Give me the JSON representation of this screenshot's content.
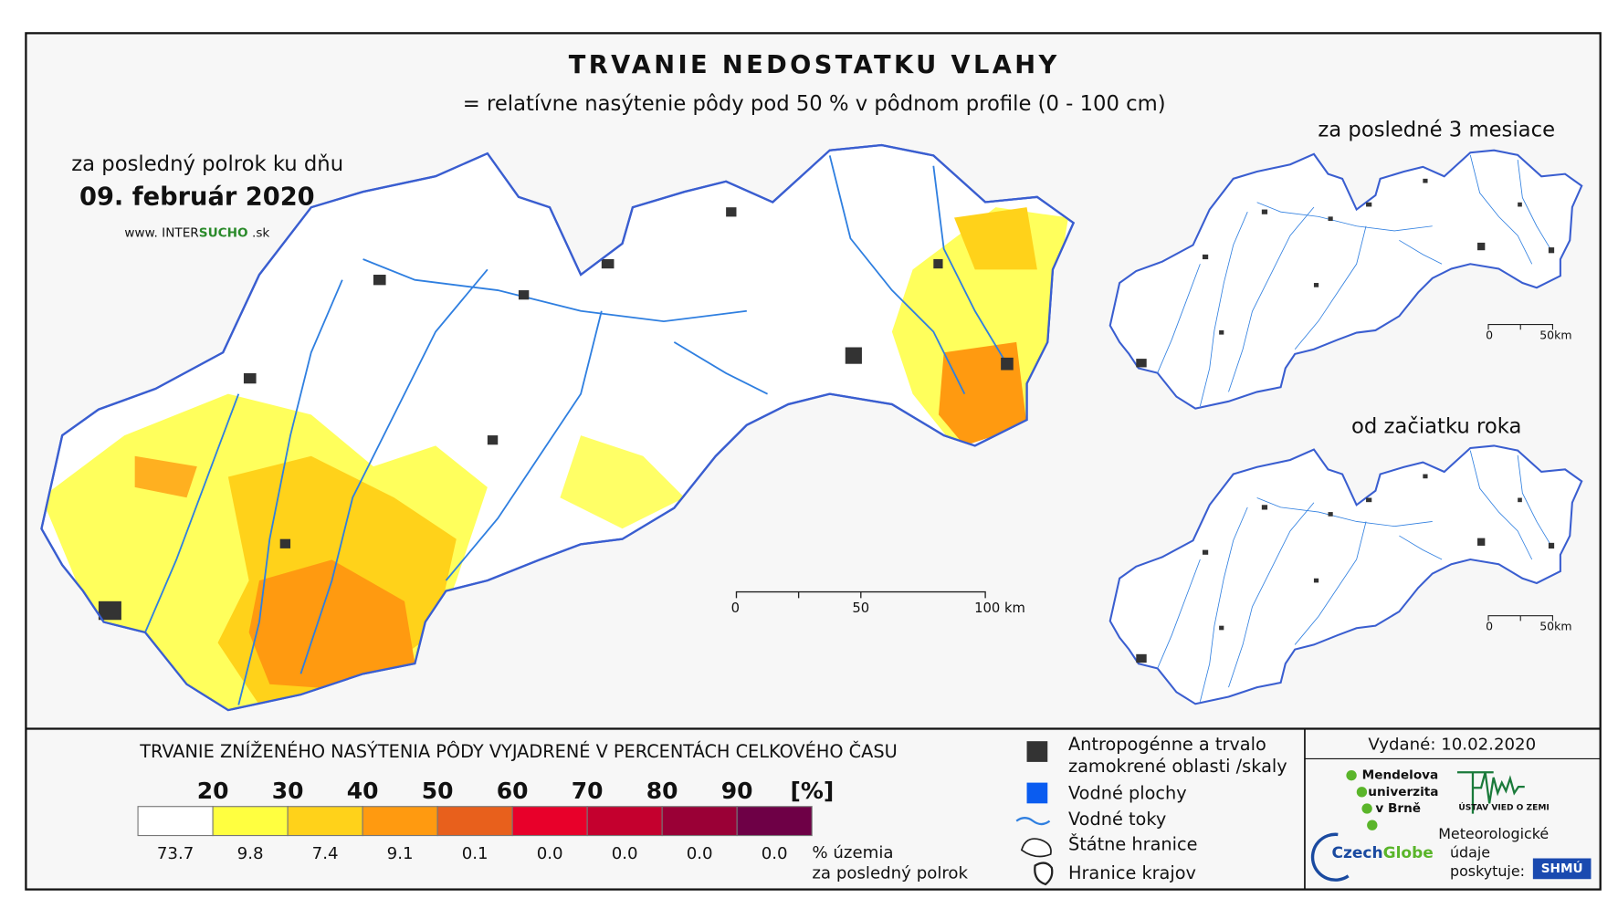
{
  "header": {
    "title": "TRVANIE NEDOSTATKU VLAHY",
    "subtitle": "= relatívne nasýtenie pôdy pod 50 % v pôdnom profile (0 - 100 cm)"
  },
  "main_map": {
    "caption": "za posledný polrok ku dňu",
    "date": "09. február 2020",
    "website": {
      "prefix": "www. INTER",
      "highlight": "SUCHO",
      "suffix": " .sk"
    },
    "scale": {
      "ticks": [
        "0",
        "50",
        "100 km"
      ]
    }
  },
  "inset_maps": [
    {
      "caption": "za posledné 3 mesiace",
      "scale": [
        "0",
        "50km"
      ]
    },
    {
      "caption": "od začiatku roka",
      "scale": [
        "0",
        "50km"
      ]
    }
  ],
  "legend": {
    "title": "TRVANIE ZNÍŽENÉHO NASÝTENIA PÔDY VYJADRENÉ V PERCENTÁCH CELKOVÉHO ČASU",
    "thresholds": [
      20,
      30,
      40,
      50,
      60,
      70,
      80,
      90
    ],
    "unit": "[%]",
    "classes": [
      {
        "color": "#ffffff",
        "share": "73.7"
      },
      {
        "color": "#ffff40",
        "share": "9.8"
      },
      {
        "color": "#ffd21a",
        "share": "7.4"
      },
      {
        "color": "#ff9a10",
        "share": "9.1"
      },
      {
        "color": "#e8601c",
        "share": "0.1"
      },
      {
        "color": "#e8002a",
        "share": "0.0"
      },
      {
        "color": "#c4002e",
        "share": "0.0"
      },
      {
        "color": "#9a0036",
        "share": "0.0"
      },
      {
        "color": "#6e0046",
        "share": "0.0"
      }
    ],
    "share_caption": [
      "% územia",
      "za posledný polrok"
    ]
  },
  "map_legend": {
    "items": [
      "Antropogénne a trvalo",
      "zamokrené oblasti /skaly",
      "Vodné plochy",
      "Vodné toky",
      "Štátne hranice",
      "Hranice krajov"
    ]
  },
  "credits": {
    "issued": "Vydané: 10.02.2020",
    "mendel": [
      "Mendelova",
      "univerzita",
      "v Brně"
    ],
    "institute": "ÚSTAV VIED O ZEMI",
    "czechglobe": [
      "Czech",
      "Globe"
    ],
    "meteo": [
      "Meteorologické",
      "údaje",
      "poskytuje:"
    ],
    "shmu": "SHMÚ"
  }
}
